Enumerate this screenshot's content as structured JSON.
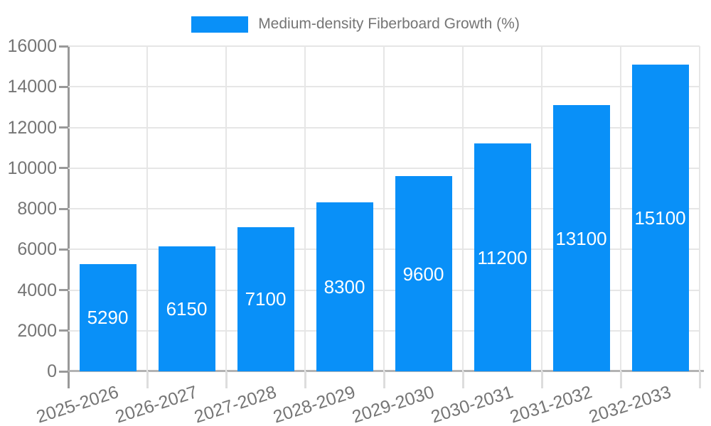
{
  "legend": {
    "label": "Medium-density Fiberboard Growth (%)",
    "swatch_color": "#0990f8"
  },
  "chart_data": {
    "type": "bar",
    "title": "Medium-density Fiberboard Growth (%)",
    "categories": [
      "2025-2026",
      "2026-2027",
      "2027-2028",
      "2028-2029",
      "2029-2030",
      "2030-2031",
      "2031-2032",
      "2032-2033"
    ],
    "values": [
      5290,
      6150,
      7100,
      8300,
      9600,
      11200,
      13100,
      15100
    ],
    "bar_labels": [
      "5290",
      "6150",
      "7100",
      "8300",
      "9600",
      "11200",
      "13100",
      "15100"
    ],
    "series": [
      {
        "name": "Medium-density Fiberboard Growth (%)",
        "values": [
          5290,
          6150,
          7100,
          8300,
          9600,
          11200,
          13100,
          15100
        ]
      }
    ],
    "xlabel": "",
    "ylabel": "",
    "ylim": [
      0,
      16000
    ],
    "ytick_step": 2000,
    "y_tick_labels": [
      "0",
      "2000",
      "4000",
      "6000",
      "8000",
      "10000",
      "12000",
      "14000",
      "16000"
    ],
    "grid": true,
    "legend_position": "top-center",
    "colors": {
      "bar": "#0990f8",
      "axis_text": "#757575",
      "bar_label_text": "#ffffff",
      "grid_line": "#e6e6e6",
      "y_axis_line": "#999999",
      "x_baseline": "#b3b3b3",
      "x_tick": "#dddddd",
      "background": "#ffffff"
    }
  }
}
